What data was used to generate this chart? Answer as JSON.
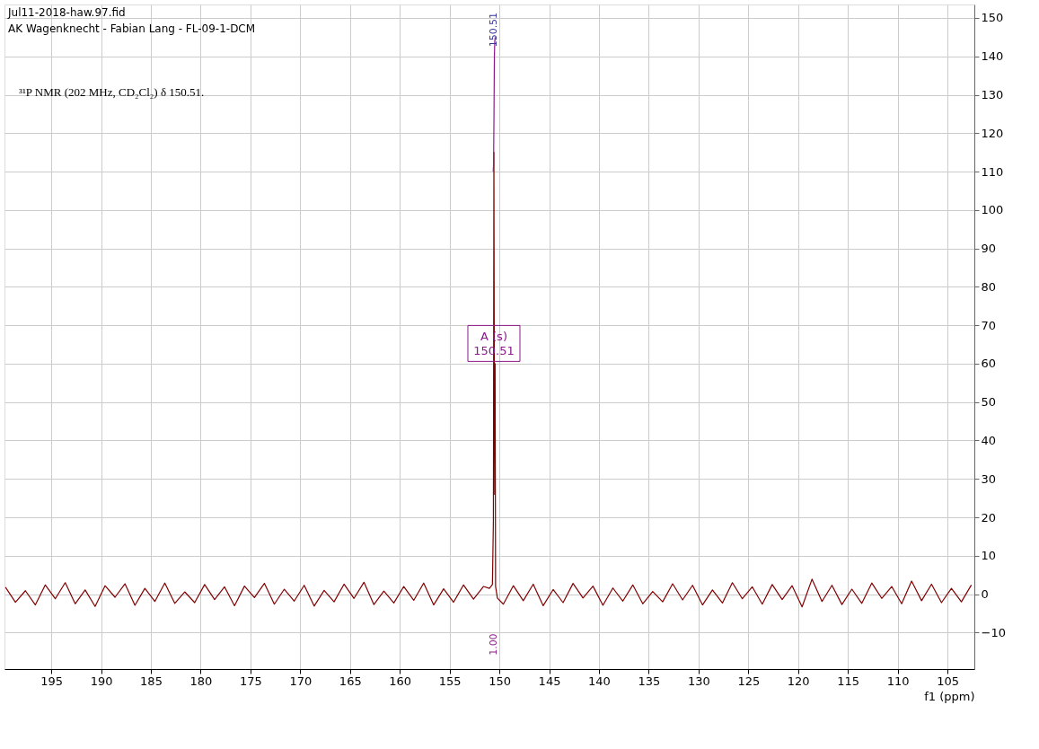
{
  "chart_data": {
    "type": "line",
    "xlabel": "f1 (ppm)",
    "xlim": [
      199.7,
      102.3
    ],
    "ylim": [
      -19.5,
      153.5
    ],
    "xticks": [
      195,
      190,
      185,
      180,
      175,
      170,
      165,
      160,
      155,
      150,
      145,
      140,
      135,
      130,
      125,
      120,
      115,
      110,
      105
    ],
    "yticks": [
      -10,
      0,
      10,
      20,
      30,
      40,
      50,
      60,
      70,
      80,
      90,
      100,
      110,
      120,
      130,
      140,
      150
    ],
    "grid": true,
    "series": [
      {
        "color": "#800000",
        "x": [
          199.6,
          198.6,
          197.6,
          196.6,
          195.6,
          194.6,
          193.6,
          192.6,
          191.6,
          190.6,
          189.6,
          188.6,
          187.6,
          186.6,
          185.6,
          184.6,
          183.6,
          182.6,
          181.6,
          180.6,
          179.6,
          178.6,
          177.6,
          176.6,
          175.6,
          174.6,
          173.6,
          172.6,
          171.6,
          170.6,
          169.6,
          168.6,
          167.6,
          166.6,
          165.6,
          164.6,
          163.6,
          162.6,
          161.6,
          160.6,
          159.6,
          158.6,
          157.6,
          156.6,
          155.6,
          154.6,
          153.6,
          152.6,
          151.6,
          151.0,
          150.7,
          150.6,
          150.55,
          150.51,
          150.47,
          150.43,
          150.38,
          150.2,
          149.6,
          148.6,
          147.6,
          146.6,
          145.6,
          144.6,
          143.6,
          142.6,
          141.6,
          140.6,
          139.6,
          138.6,
          137.6,
          136.6,
          135.6,
          134.6,
          133.6,
          132.6,
          131.6,
          130.6,
          129.6,
          128.6,
          127.6,
          126.6,
          125.6,
          124.6,
          123.6,
          122.6,
          121.6,
          120.6,
          119.6,
          118.6,
          117.6,
          116.6,
          115.6,
          114.6,
          113.6,
          112.6,
          111.6,
          110.6,
          109.6,
          108.6,
          107.6,
          106.6,
          105.6,
          104.6,
          103.6,
          102.6
        ],
        "values": [
          1.8,
          -2.1,
          0.9,
          -2.8,
          2.4,
          -1.2,
          3.0,
          -2.5,
          1.1,
          -3.2,
          2.2,
          -0.8,
          2.7,
          -2.9,
          1.5,
          -1.9,
          2.9,
          -2.4,
          0.6,
          -2.2,
          2.5,
          -1.4,
          1.9,
          -3.0,
          2.1,
          -0.9,
          2.8,
          -2.6,
          1.3,
          -1.8,
          2.3,
          -3.1,
          1.0,
          -2.0,
          2.6,
          -1.1,
          3.1,
          -2.7,
          0.8,
          -2.3,
          2.0,
          -1.6,
          2.9,
          -2.8,
          1.4,
          -2.1,
          2.4,
          -1.3,
          2.0,
          1.5,
          2.5,
          19,
          115,
          60,
          26,
          60,
          2,
          -1,
          -2.6,
          2.2,
          -1.7,
          2.6,
          -3.0,
          1.2,
          -2.2,
          2.8,
          -1.0,
          2.1,
          -2.9,
          1.6,
          -1.8,
          2.4,
          -2.5,
          0.7,
          -2.0,
          2.7,
          -1.5,
          2.3,
          -2.8,
          1.1,
          -2.3,
          3.0,
          -1.2,
          1.9,
          -2.6,
          2.5,
          -1.4,
          2.2,
          -3.3,
          3.9,
          -1.9,
          2.3,
          -2.7,
          1.3,
          -2.4,
          2.9,
          -1.1,
          2.0,
          -2.5,
          3.4,
          -1.7,
          2.6,
          -2.2,
          1.5,
          -2.0,
          2.4
        ]
      },
      {
        "color": "#8b1a8b",
        "x": [
          150.62,
          150.58,
          150.54,
          150.5,
          150.46,
          150.42
        ],
        "values": [
          110,
          112,
          125,
          140,
          144,
          145
        ]
      }
    ],
    "annotations": [
      "Jul11-2018-haw.97.fid",
      "AK Wagenknecht - Fabian Lang - FL-09-1-DCM",
      "³¹P NMR (202 MHz, CD₂Cl₂) δ 150.51.",
      "150.51",
      "A (s)\n150.51",
      "1.00"
    ]
  }
}
